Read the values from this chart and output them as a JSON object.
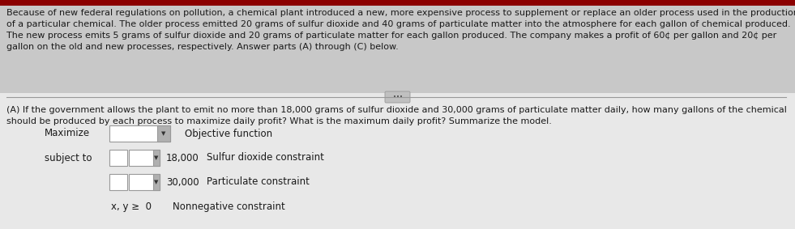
{
  "top_bg": "#c8c8c8",
  "bottom_bg": "#e8e8e8",
  "overall_bg": "#c8c8c8",
  "paragraph_text_lines": [
    "Because of new federal regulations on pollution, a chemical plant introduced a new, more expensive process to supplement or replace an older process used in the production",
    "of a particular chemical. The older process emitted 20 grams of sulfur dioxide and 40 grams of particulate matter into the atmosphere for each gallon of chemical produced.",
    "The new process emits 5 grams of sulfur dioxide and 20 grams of particulate matter for each gallon produced. The company makes a profit of 60¢ per gallon and 20¢ per",
    "gallon on the old and new processes, respectively. Answer parts (A) through (C) below."
  ],
  "part_a_text_lines": [
    "(A) If the government allows the plant to emit no more than 18,000 grams of sulfur dioxide and 30,000 grams of particulate matter daily, how many gallons of the chemical",
    "should be produced by each process to maximize daily profit? What is the maximum daily profit? Summarize the model."
  ],
  "maximize_label": "Maximize",
  "objective_label": "Objective function",
  "subject_to_label": "subject to",
  "constraint1_value": "18,000",
  "constraint1_label": "Sulfur dioxide constraint",
  "constraint2_value": "30,000",
  "constraint2_label": "Particulate constraint",
  "nonneg_label": "x, y ≥  0",
  "nonneg_desc": "Nonnegative constraint",
  "font_size_para": 8.0,
  "font_size_labels": 8.5,
  "text_color": "#1a1a1a",
  "box_facecolor": "#ffffff",
  "box_edgecolor": "#999999",
  "arrow_bg": "#b0b0b0",
  "divider_color": "#999999",
  "separator_btn_bg": "#c0c0c0",
  "separator_btn_edge": "#999999"
}
